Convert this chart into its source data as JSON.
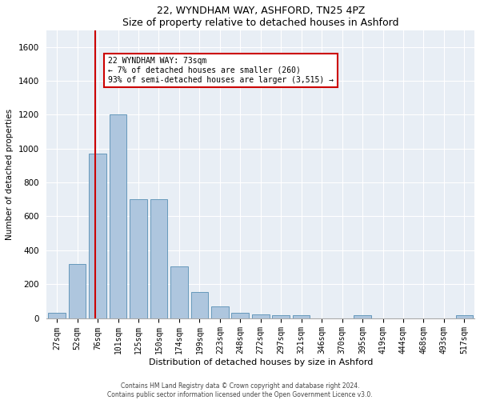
{
  "title": "22, WYNDHAM WAY, ASHFORD, TN25 4PZ",
  "subtitle": "Size of property relative to detached houses in Ashford",
  "xlabel": "Distribution of detached houses by size in Ashford",
  "ylabel": "Number of detached properties",
  "bar_categories": [
    "27sqm",
    "52sqm",
    "76sqm",
    "101sqm",
    "125sqm",
    "150sqm",
    "174sqm",
    "199sqm",
    "223sqm",
    "248sqm",
    "272sqm",
    "297sqm",
    "321sqm",
    "346sqm",
    "370sqm",
    "395sqm",
    "419sqm",
    "444sqm",
    "468sqm",
    "493sqm",
    "517sqm"
  ],
  "bar_values": [
    30,
    320,
    970,
    1200,
    700,
    700,
    305,
    155,
    70,
    30,
    20,
    15,
    15,
    0,
    0,
    15,
    0,
    0,
    0,
    0,
    15
  ],
  "bar_color": "#aec6de",
  "bar_edge_color": "#6699bb",
  "ylim": [
    0,
    1700
  ],
  "yticks": [
    0,
    200,
    400,
    600,
    800,
    1000,
    1200,
    1400,
    1600
  ],
  "annotation_text_line1": "22 WYNDHAM WAY: 73sqm",
  "annotation_text_line2": "← 7% of detached houses are smaller (260)",
  "annotation_text_line3": "93% of semi-detached houses are larger (3,515) →",
  "annotation_box_color": "#ffffff",
  "annotation_border_color": "#cc0000",
  "vline_color": "#cc0000",
  "bg_color": "#e8eef5",
  "footer_line1": "Contains HM Land Registry data © Crown copyright and database right 2024.",
  "footer_line2": "Contains public sector information licensed under the Open Government Licence v3.0."
}
